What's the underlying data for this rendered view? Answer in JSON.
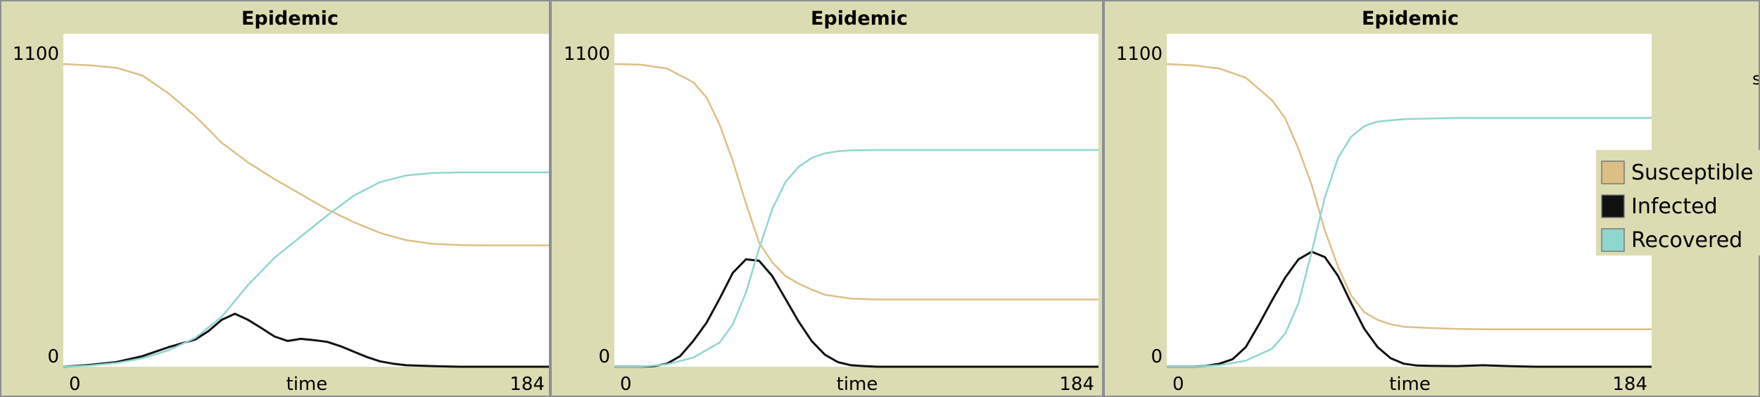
{
  "colors": {
    "background": "#dcdcb3",
    "plot_area": "#ffffff",
    "border": "#8a8f94",
    "susceptible": "#dcbf84",
    "infected": "#111111",
    "recovered": "#8fd6d0"
  },
  "edge_glyph": "s",
  "chart_data": [
    {
      "type": "line",
      "title": "Epidemic",
      "xlabel": "time",
      "xlim": [
        0,
        184
      ],
      "ylim": [
        0,
        1100
      ],
      "x_tick_labels": [
        "0",
        "184"
      ],
      "y_tick_labels": [
        "0",
        "1100"
      ],
      "grid": false,
      "series": [
        {
          "name": "Susceptible",
          "color": "#dcbf84",
          "x": [
            0,
            10,
            20,
            30,
            40,
            50,
            60,
            70,
            80,
            90,
            100,
            110,
            120,
            130,
            140,
            150,
            160,
            170,
            184
          ],
          "y": [
            1000,
            996,
            988,
            962,
            902,
            828,
            740,
            675,
            620,
            570,
            520,
            478,
            442,
            418,
            406,
            402,
            401,
            401,
            401
          ]
        },
        {
          "name": "Infected",
          "color": "#111111",
          "x": [
            0,
            10,
            20,
            30,
            40,
            50,
            55,
            60,
            65,
            70,
            75,
            80,
            85,
            90,
            95,
            100,
            105,
            110,
            115,
            120,
            125,
            130,
            140,
            150,
            160,
            170,
            184
          ],
          "y": [
            0,
            6,
            15,
            35,
            65,
            90,
            118,
            155,
            175,
            155,
            128,
            100,
            85,
            92,
            88,
            82,
            68,
            50,
            32,
            18,
            10,
            5,
            2,
            0,
            0,
            0,
            0
          ]
        },
        {
          "name": "Recovered",
          "color": "#8fd6d0",
          "x": [
            0,
            10,
            20,
            30,
            40,
            50,
            60,
            70,
            80,
            90,
            100,
            110,
            120,
            130,
            140,
            150,
            160,
            170,
            184
          ],
          "y": [
            0,
            4,
            12,
            28,
            55,
            95,
            165,
            270,
            360,
            430,
            500,
            565,
            610,
            632,
            640,
            642,
            642,
            642,
            642
          ]
        }
      ]
    },
    {
      "type": "line",
      "title": "Epidemic",
      "xlabel": "time",
      "xlim": [
        0,
        184
      ],
      "ylim": [
        0,
        1100
      ],
      "x_tick_labels": [
        "0",
        "184"
      ],
      "y_tick_labels": [
        "0",
        "1100"
      ],
      "grid": false,
      "series": [
        {
          "name": "Susceptible",
          "color": "#dcbf84",
          "x": [
            0,
            10,
            20,
            30,
            35,
            40,
            45,
            50,
            55,
            60,
            65,
            70,
            75,
            80,
            90,
            100,
            110,
            120,
            140,
            160,
            184
          ],
          "y": [
            1000,
            998,
            985,
            940,
            890,
            800,
            680,
            540,
            410,
            345,
            300,
            275,
            255,
            238,
            225,
            222,
            222,
            222,
            222,
            222,
            222
          ]
        },
        {
          "name": "Infected",
          "color": "#111111",
          "x": [
            0,
            10,
            15,
            20,
            25,
            30,
            35,
            40,
            45,
            50,
            55,
            60,
            65,
            70,
            75,
            80,
            85,
            90,
            95,
            100,
            110,
            120,
            140,
            160,
            184
          ],
          "y": [
            0,
            0,
            2,
            10,
            35,
            85,
            145,
            225,
            310,
            355,
            350,
            300,
            225,
            150,
            85,
            40,
            15,
            5,
            2,
            0,
            0,
            0,
            0,
            0,
            0
          ]
        },
        {
          "name": "Recovered",
          "color": "#8fd6d0",
          "x": [
            0,
            10,
            20,
            30,
            40,
            45,
            50,
            55,
            60,
            65,
            70,
            75,
            80,
            85,
            90,
            100,
            110,
            120,
            140,
            160,
            184
          ],
          "y": [
            0,
            0,
            8,
            30,
            80,
            140,
            245,
            390,
            520,
            610,
            660,
            690,
            705,
            712,
            715,
            716,
            716,
            716,
            716,
            716,
            716
          ]
        }
      ]
    },
    {
      "type": "line",
      "title": "Epidemic",
      "xlabel": "time",
      "xlim": [
        0,
        184
      ],
      "ylim": [
        0,
        1100
      ],
      "x_tick_labels": [
        "0",
        "184"
      ],
      "y_tick_labels": [
        "0",
        "1100"
      ],
      "grid": false,
      "legend": {
        "position": "right",
        "entries": [
          "Susceptible",
          "Infected",
          "Recovered"
        ]
      },
      "series": [
        {
          "name": "Susceptible",
          "color": "#dcbf84",
          "x": [
            0,
            10,
            20,
            30,
            40,
            45,
            50,
            55,
            60,
            65,
            70,
            75,
            80,
            85,
            90,
            100,
            110,
            120,
            140,
            160,
            184
          ],
          "y": [
            1000,
            996,
            985,
            955,
            880,
            820,
            720,
            600,
            450,
            330,
            235,
            180,
            155,
            140,
            132,
            128,
            125,
            124,
            124,
            124,
            124
          ]
        },
        {
          "name": "Infected",
          "color": "#111111",
          "x": [
            0,
            10,
            15,
            20,
            25,
            30,
            35,
            40,
            45,
            50,
            55,
            60,
            65,
            70,
            75,
            80,
            85,
            90,
            95,
            100,
            110,
            120,
            130,
            140,
            160,
            184
          ],
          "y": [
            0,
            0,
            3,
            10,
            25,
            65,
            140,
            220,
            295,
            355,
            380,
            362,
            300,
            210,
            125,
            65,
            28,
            10,
            4,
            3,
            2,
            5,
            2,
            0,
            0,
            0
          ]
        },
        {
          "name": "Recovered",
          "color": "#8fd6d0",
          "x": [
            0,
            10,
            20,
            30,
            40,
            45,
            50,
            55,
            60,
            65,
            70,
            75,
            80,
            90,
            100,
            110,
            120,
            140,
            160,
            184
          ],
          "y": [
            0,
            0,
            5,
            20,
            60,
            110,
            210,
            380,
            560,
            690,
            760,
            795,
            810,
            818,
            820,
            822,
            822,
            822,
            822,
            822
          ]
        }
      ]
    }
  ]
}
